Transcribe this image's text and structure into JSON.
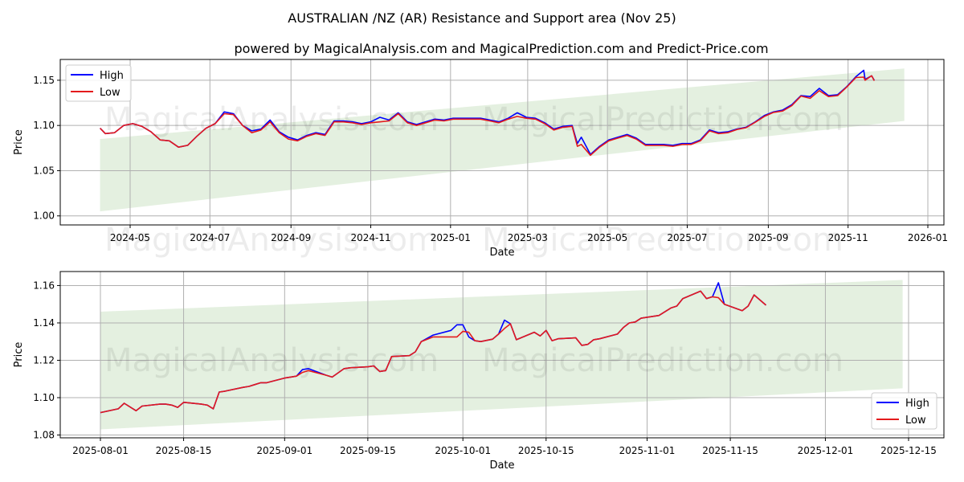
{
  "title": "AUSTRALIAN /NZ (AR) Resistance and Support area (Nov 25)",
  "subtitle": "powered by MagicalAnalysis.com and MagicalPrediction.com and Predict-Price.com",
  "watermarks": [
    "MagicalAnalysis.com",
    "MagicalPrediction.com"
  ],
  "colors": {
    "high": "#0000ff",
    "low": "#e41a1c",
    "band": "#d9ead3",
    "grid": "#b0b0b0"
  },
  "chart_data": [
    {
      "type": "line",
      "xlabel": "Date",
      "ylabel": "Price",
      "legend": {
        "position": "top-left",
        "entries": [
          "High",
          "Low"
        ]
      },
      "grid": true,
      "ylim": [
        0.99,
        1.173
      ],
      "yticks": [
        1.0,
        1.05,
        1.1,
        1.15
      ],
      "ytick_labels": [
        "1.00",
        "1.05",
        "1.10",
        "1.15"
      ],
      "xticks": [
        "2024-05-01",
        "2024-07-01",
        "2024-09-01",
        "2024-11-01",
        "2025-01-01",
        "2025-03-01",
        "2025-05-01",
        "2025-07-01",
        "2025-09-01",
        "2025-11-01",
        "2026-01-01"
      ],
      "xtick_labels": [
        "2024-05",
        "2024-07",
        "2024-09",
        "2024-11",
        "2025-01",
        "2025-03",
        "2025-05",
        "2025-07",
        "2025-09",
        "2025-11",
        "2026-01"
      ],
      "band": {
        "start": "2024-04-08",
        "end": "2025-12-14",
        "lower": [
          1.005,
          1.105
        ],
        "upper": [
          1.085,
          1.163
        ]
      },
      "x": [
        "2024-04-08",
        "2024-04-12",
        "2024-04-19",
        "2024-04-26",
        "2024-05-03",
        "2024-05-10",
        "2024-05-17",
        "2024-05-24",
        "2024-05-31",
        "2024-06-07",
        "2024-06-14",
        "2024-06-21",
        "2024-06-28",
        "2024-07-05",
        "2024-07-12",
        "2024-07-19",
        "2024-07-26",
        "2024-08-02",
        "2024-08-09",
        "2024-08-16",
        "2024-08-23",
        "2024-08-30",
        "2024-09-06",
        "2024-09-13",
        "2024-09-20",
        "2024-09-27",
        "2024-10-04",
        "2024-10-11",
        "2024-10-18",
        "2024-10-25",
        "2024-11-01",
        "2024-11-08",
        "2024-11-15",
        "2024-11-22",
        "2024-11-29",
        "2024-12-06",
        "2024-12-13",
        "2024-12-20",
        "2024-12-27",
        "2025-01-03",
        "2025-01-10",
        "2025-01-17",
        "2025-01-24",
        "2025-01-31",
        "2025-02-07",
        "2025-02-14",
        "2025-02-21",
        "2025-02-28",
        "2025-03-07",
        "2025-03-14",
        "2025-03-21",
        "2025-03-28",
        "2025-04-04",
        "2025-04-08",
        "2025-04-11",
        "2025-04-18",
        "2025-04-25",
        "2025-05-02",
        "2025-05-09",
        "2025-05-16",
        "2025-05-23",
        "2025-05-30",
        "2025-06-06",
        "2025-06-13",
        "2025-06-20",
        "2025-06-27",
        "2025-07-04",
        "2025-07-11",
        "2025-07-18",
        "2025-07-25",
        "2025-08-01",
        "2025-08-08",
        "2025-08-15",
        "2025-08-22",
        "2025-08-29",
        "2025-09-05",
        "2025-09-12",
        "2025-09-19",
        "2025-09-26",
        "2025-10-03",
        "2025-10-10",
        "2025-10-17",
        "2025-10-24",
        "2025-10-31",
        "2025-11-07",
        "2025-11-13",
        "2025-11-14",
        "2025-11-19",
        "2025-11-21"
      ],
      "series": [
        {
          "name": "High",
          "values": [
            1.097,
            1.091,
            1.092,
            1.1,
            1.102,
            1.099,
            1.093,
            1.084,
            1.083,
            1.076,
            1.078,
            1.088,
            1.097,
            1.102,
            1.115,
            1.113,
            1.1,
            1.094,
            1.096,
            1.106,
            1.093,
            1.087,
            1.084,
            1.089,
            1.092,
            1.09,
            1.105,
            1.105,
            1.104,
            1.102,
            1.104,
            1.109,
            1.106,
            1.114,
            1.104,
            1.101,
            1.104,
            1.107,
            1.106,
            1.108,
            1.108,
            1.108,
            1.108,
            1.106,
            1.104,
            1.108,
            1.114,
            1.109,
            1.108,
            1.103,
            1.096,
            1.099,
            1.1,
            1.08,
            1.087,
            1.068,
            1.077,
            1.084,
            1.087,
            1.09,
            1.086,
            1.079,
            1.079,
            1.079,
            1.078,
            1.08,
            1.08,
            1.084,
            1.095,
            1.092,
            1.093,
            1.096,
            1.098,
            1.104,
            1.111,
            1.115,
            1.117,
            1.123,
            1.133,
            1.132,
            1.141,
            1.133,
            1.134,
            1.143,
            1.154,
            1.161,
            1.151,
            1.155,
            1.15
          ]
        },
        {
          "name": "Low",
          "values": [
            1.097,
            1.091,
            1.092,
            1.1,
            1.102,
            1.099,
            1.093,
            1.084,
            1.083,
            1.076,
            1.078,
            1.088,
            1.097,
            1.102,
            1.113,
            1.112,
            1.1,
            1.092,
            1.095,
            1.104,
            1.092,
            1.085,
            1.083,
            1.088,
            1.091,
            1.089,
            1.104,
            1.104,
            1.103,
            1.101,
            1.103,
            1.104,
            1.105,
            1.113,
            1.103,
            1.1,
            1.103,
            1.106,
            1.105,
            1.107,
            1.107,
            1.107,
            1.107,
            1.105,
            1.103,
            1.107,
            1.11,
            1.108,
            1.107,
            1.102,
            1.095,
            1.098,
            1.099,
            1.077,
            1.079,
            1.067,
            1.076,
            1.083,
            1.086,
            1.089,
            1.085,
            1.078,
            1.078,
            1.078,
            1.077,
            1.079,
            1.079,
            1.083,
            1.094,
            1.091,
            1.092,
            1.0955,
            1.0975,
            1.1035,
            1.11,
            1.1145,
            1.116,
            1.122,
            1.1325,
            1.13,
            1.1385,
            1.132,
            1.133,
            1.1425,
            1.153,
            1.1535,
            1.15,
            1.155,
            1.1495
          ]
        }
      ]
    },
    {
      "type": "line",
      "xlabel": "Date",
      "ylabel": "Price",
      "legend": {
        "position": "bottom-right",
        "entries": [
          "High",
          "Low"
        ]
      },
      "grid": true,
      "ylim": [
        1.0785,
        1.1675
      ],
      "yticks": [
        1.08,
        1.1,
        1.12,
        1.14,
        1.16
      ],
      "ytick_labels": [
        "1.08",
        "1.10",
        "1.12",
        "1.14",
        "1.16"
      ],
      "xticks": [
        "2025-08-01",
        "2025-08-15",
        "2025-09-01",
        "2025-09-15",
        "2025-10-01",
        "2025-10-15",
        "2025-11-01",
        "2025-11-15",
        "2025-12-01",
        "2025-12-15"
      ],
      "xtick_labels": [
        "2025-08-01",
        "2025-08-15",
        "2025-09-01",
        "2025-09-15",
        "2025-10-01",
        "2025-10-15",
        "2025-11-01",
        "2025-11-15",
        "2025-12-01",
        "2025-12-15"
      ],
      "band": {
        "start": "2025-08-01",
        "end": "2025-12-14",
        "lower": [
          1.083,
          1.105
        ],
        "upper": [
          1.146,
          1.163
        ]
      },
      "x": [
        "2025-08-01",
        "2025-08-04",
        "2025-08-05",
        "2025-08-07",
        "2025-08-08",
        "2025-08-11",
        "2025-08-12",
        "2025-08-13",
        "2025-08-14",
        "2025-08-15",
        "2025-08-18",
        "2025-08-19",
        "2025-08-20",
        "2025-08-21",
        "2025-08-22",
        "2025-08-25",
        "2025-08-26",
        "2025-08-27",
        "2025-08-28",
        "2025-08-29",
        "2025-09-01",
        "2025-09-02",
        "2025-09-03",
        "2025-09-04",
        "2025-09-05",
        "2025-09-08",
        "2025-09-09",
        "2025-09-11",
        "2025-09-12",
        "2025-09-15",
        "2025-09-16",
        "2025-09-17",
        "2025-09-18",
        "2025-09-19",
        "2025-09-22",
        "2025-09-23",
        "2025-09-24",
        "2025-09-26",
        "2025-09-29",
        "2025-09-30",
        "2025-10-01",
        "2025-10-02",
        "2025-10-03",
        "2025-10-04",
        "2025-10-06",
        "2025-10-07",
        "2025-10-08",
        "2025-10-09",
        "2025-10-10",
        "2025-10-13",
        "2025-10-14",
        "2025-10-15",
        "2025-10-16",
        "2025-10-17",
        "2025-10-20",
        "2025-10-21",
        "2025-10-22",
        "2025-10-23",
        "2025-10-24",
        "2025-10-27",
        "2025-10-28",
        "2025-10-29",
        "2025-10-30",
        "2025-10-31",
        "2025-11-03",
        "2025-11-05",
        "2025-11-06",
        "2025-11-07",
        "2025-11-10",
        "2025-11-11",
        "2025-11-12",
        "2025-11-13",
        "2025-11-14",
        "2025-11-17",
        "2025-11-18",
        "2025-11-19",
        "2025-11-21"
      ],
      "series": [
        {
          "name": "High",
          "values": [
            1.092,
            1.094,
            1.097,
            1.093,
            1.0955,
            1.0965,
            1.0965,
            1.096,
            1.0948,
            1.0975,
            1.0965,
            1.096,
            1.094,
            1.103,
            1.1035,
            1.1055,
            1.106,
            1.107,
            1.108,
            1.108,
            1.1105,
            1.111,
            1.1115,
            1.115,
            1.1155,
            1.112,
            1.111,
            1.1155,
            1.116,
            1.1165,
            1.117,
            1.114,
            1.1145,
            1.122,
            1.1225,
            1.1245,
            1.13,
            1.1335,
            1.136,
            1.139,
            1.139,
            1.1325,
            1.1305,
            1.13,
            1.1313,
            1.134,
            1.1415,
            1.1395,
            1.131,
            1.135,
            1.133,
            1.136,
            1.1305,
            1.1315,
            1.132,
            1.128,
            1.1285,
            1.131,
            1.1315,
            1.134,
            1.1375,
            1.14,
            1.1405,
            1.1425,
            1.144,
            1.148,
            1.149,
            1.153,
            1.157,
            1.153,
            1.154,
            1.1615,
            1.15,
            1.1465,
            1.149,
            1.155,
            1.1495
          ]
        },
        {
          "name": "Low",
          "values": [
            1.092,
            1.094,
            1.097,
            1.093,
            1.0955,
            1.0965,
            1.0965,
            1.096,
            1.0948,
            1.0975,
            1.0965,
            1.096,
            1.094,
            1.103,
            1.1035,
            1.1055,
            1.106,
            1.107,
            1.108,
            1.108,
            1.1105,
            1.111,
            1.1115,
            1.1135,
            1.1145,
            1.112,
            1.111,
            1.1155,
            1.116,
            1.1165,
            1.117,
            1.114,
            1.1145,
            1.122,
            1.1225,
            1.1245,
            1.13,
            1.1325,
            1.1325,
            1.1325,
            1.1355,
            1.135,
            1.1305,
            1.13,
            1.1313,
            1.134,
            1.137,
            1.1395,
            1.131,
            1.135,
            1.133,
            1.136,
            1.1305,
            1.1315,
            1.132,
            1.128,
            1.1285,
            1.131,
            1.1315,
            1.134,
            1.1375,
            1.14,
            1.1405,
            1.1425,
            1.144,
            1.148,
            1.149,
            1.153,
            1.157,
            1.153,
            1.154,
            1.1535,
            1.15,
            1.1465,
            1.149,
            1.155,
            1.1495
          ]
        }
      ]
    }
  ]
}
